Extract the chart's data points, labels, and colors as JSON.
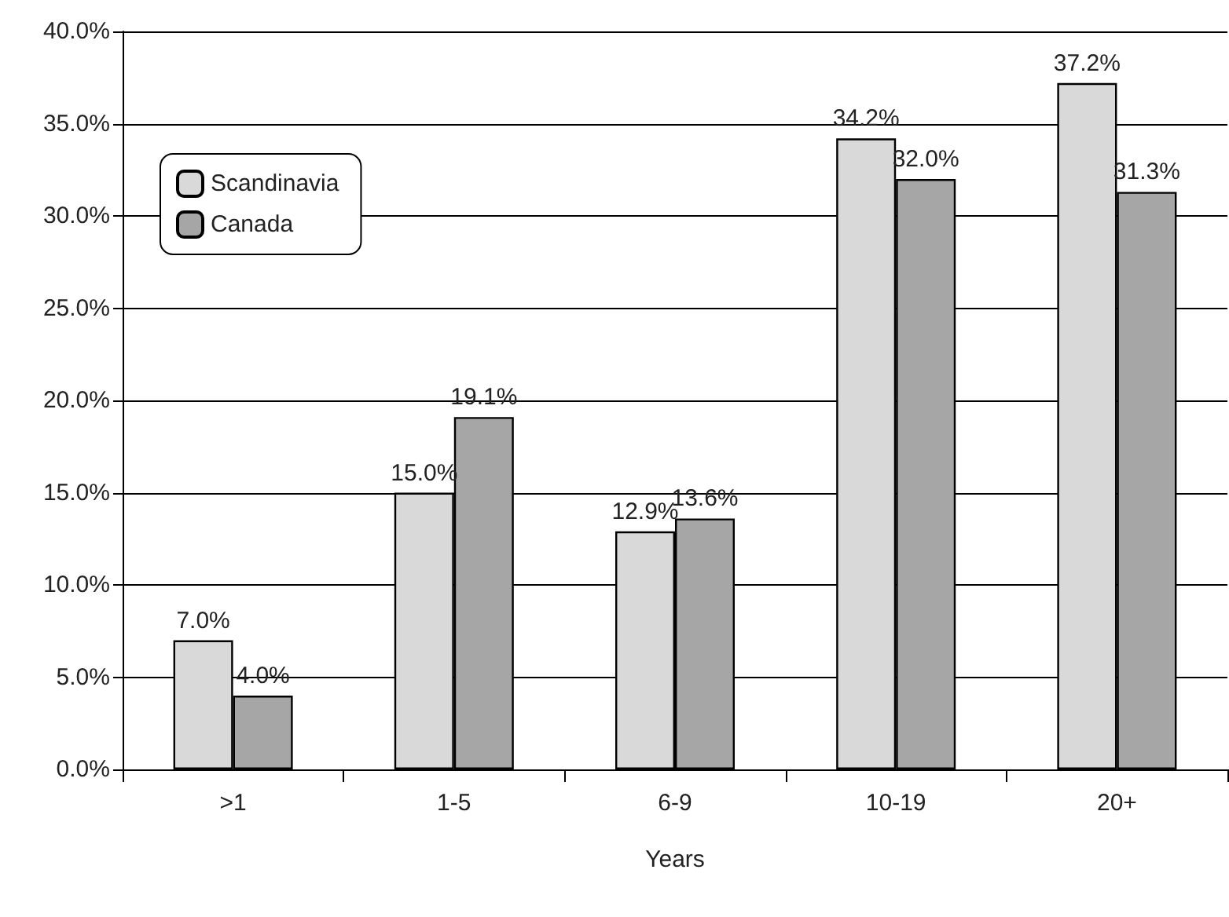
{
  "chart_data": {
    "type": "bar",
    "xlabel": "Years",
    "categories": [
      ">1",
      "1-5",
      "6-9",
      "10-19",
      "20+"
    ],
    "series": [
      {
        "name": "Scandinavia",
        "color": "#d9d9d9",
        "values": [
          7.0,
          15.0,
          12.9,
          34.2,
          37.2
        ],
        "value_labels": [
          "7.0%",
          "15.0%",
          "12.9%",
          "34.2%",
          "37.2%"
        ]
      },
      {
        "name": "Canada",
        "color": "#a6a6a6",
        "values": [
          4.0,
          19.1,
          13.6,
          32.0,
          31.3
        ],
        "value_labels": [
          "4.0%",
          "19.1%",
          "13.6%",
          "32.0%",
          "31.3%"
        ]
      }
    ],
    "ylim": [
      0,
      40
    ],
    "yticks": [
      {
        "value": 0,
        "label": "0.0%"
      },
      {
        "value": 5,
        "label": "5.0%"
      },
      {
        "value": 10,
        "label": "10.0%"
      },
      {
        "value": 15,
        "label": "15.0%"
      },
      {
        "value": 20,
        "label": "20.0%"
      },
      {
        "value": 25,
        "label": "25.0%"
      },
      {
        "value": 30,
        "label": "30.0%"
      },
      {
        "value": 35,
        "label": "35.0%"
      },
      {
        "value": 40,
        "label": "40.0%"
      }
    ],
    "grid": "y",
    "legend": "top left"
  }
}
